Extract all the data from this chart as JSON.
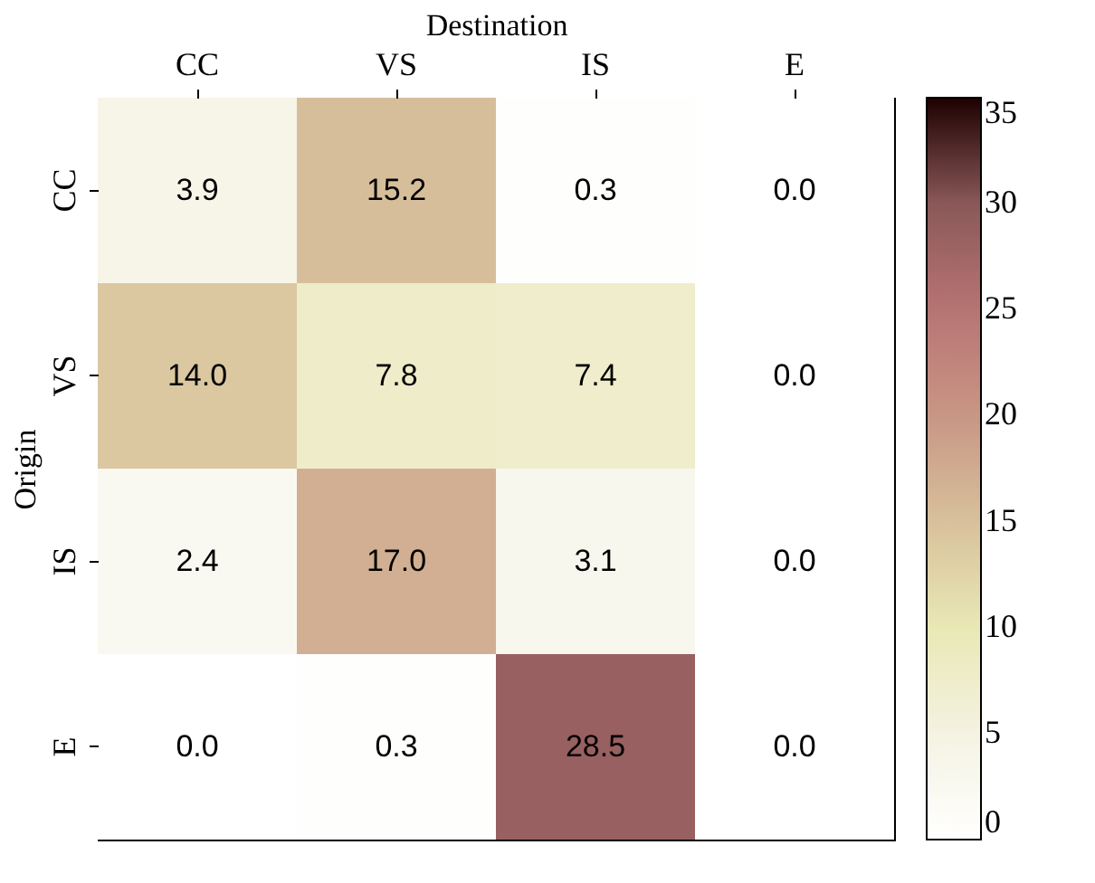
{
  "chart_data": {
    "type": "heatmap",
    "xlabel": "Destination",
    "ylabel": "Origin",
    "categories": [
      "CC",
      "VS",
      "IS",
      "E"
    ],
    "y_categories": [
      "CC",
      "VS",
      "IS",
      "E"
    ],
    "cells": [
      [
        3.9,
        15.2,
        0.3,
        0.0
      ],
      [
        14.0,
        7.8,
        7.4,
        0.0
      ],
      [
        2.4,
        17.0,
        3.1,
        0.0
      ],
      [
        0.0,
        0.3,
        28.5,
        0.0
      ]
    ],
    "cell_labels": [
      [
        "3.9",
        "15.2",
        "0.3",
        "0.0"
      ],
      [
        "14.0",
        "7.8",
        "7.4",
        "0.0"
      ],
      [
        "2.4",
        "17.0",
        "3.1",
        "0.0"
      ],
      [
        "0.0",
        "0.3",
        "28.5",
        "0.0"
      ]
    ],
    "clim": [
      0,
      35
    ],
    "cticks": [
      0,
      5,
      10,
      15,
      20,
      25,
      30,
      35
    ],
    "data_labels": true
  }
}
